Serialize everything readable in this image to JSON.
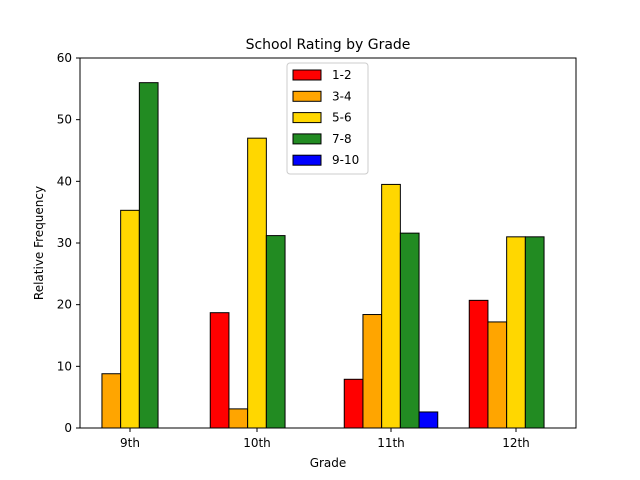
{
  "chart_data": {
    "type": "bar",
    "title": "School Rating by Grade",
    "xlabel": "Grade",
    "ylabel": "Relative Frequency",
    "ylim": [
      0,
      60
    ],
    "yticks": [
      0,
      10,
      20,
      30,
      40,
      50,
      60
    ],
    "categories": [
      "9th",
      "10th",
      "11th",
      "12th"
    ],
    "series": [
      {
        "name": "1-2",
        "color": "#ff0000",
        "values": [
          0,
          18.7,
          7.9,
          20.7
        ]
      },
      {
        "name": "3-4",
        "color": "#ffa500",
        "values": [
          8.8,
          3.1,
          18.4,
          17.2
        ]
      },
      {
        "name": "5-6",
        "color": "#ffd700",
        "values": [
          35.3,
          47.0,
          39.5,
          31.0
        ]
      },
      {
        "name": "7-8",
        "color": "#228b22",
        "values": [
          56.0,
          31.2,
          31.6,
          31.0
        ]
      },
      {
        "name": "9-10",
        "color": "#0000ff",
        "values": [
          0,
          0,
          2.6,
          0
        ]
      }
    ],
    "grid": false,
    "legend_position": "top-center"
  }
}
